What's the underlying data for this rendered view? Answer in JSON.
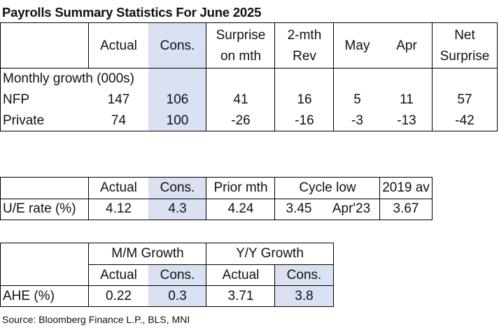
{
  "title": "Payrolls Summary Statistics For June 2025",
  "payrolls": {
    "headers": {
      "actual": "Actual",
      "cons": "Cons.",
      "surprise_l1": "Surprise",
      "surprise_l2": "on mth",
      "rev_l1": "2-mth",
      "rev_l2": "Rev",
      "may": "May",
      "apr": "Apr",
      "net_l1": "Net",
      "net_l2": "Surprise"
    },
    "section_label": "Monthly growth (000s)",
    "rows": [
      {
        "label": "NFP",
        "actual": "147",
        "cons": "106",
        "surprise": "41",
        "rev": "16",
        "may": "5",
        "apr": "11",
        "net": "57"
      },
      {
        "label": "Private",
        "actual": "74",
        "cons": "100",
        "surprise": "-26",
        "rev": "-16",
        "may": "-3",
        "apr": "-13",
        "net": "-42"
      }
    ]
  },
  "unemployment": {
    "headers": {
      "actual": "Actual",
      "cons": "Cons.",
      "prior": "Prior mth",
      "cycle_low": "Cycle low",
      "avg2019": "2019 av"
    },
    "row": {
      "label": "U/E rate (%)",
      "actual": "4.12",
      "cons": "4.3",
      "prior": "4.24",
      "cycle_low_value": "3.45",
      "cycle_low_date": "Apr'23",
      "avg2019": "3.67"
    }
  },
  "ahe": {
    "group_headers": {
      "mm": "M/M Growth",
      "yy": "Y/Y Growth"
    },
    "sub_headers": {
      "mm_actual": "Actual",
      "mm_cons": "Cons.",
      "yy_actual": "Actual",
      "yy_cons": "Cons."
    },
    "row": {
      "label": "AHE (%)",
      "mm_actual": "0.22",
      "mm_cons": "0.3",
      "yy_actual": "3.71",
      "yy_cons": "3.8"
    }
  },
  "source": "Source: Bloomberg Finance L.P., BLS, MNI",
  "colors": {
    "consensus_fill": "#d9e1f2",
    "border": "#000000"
  }
}
